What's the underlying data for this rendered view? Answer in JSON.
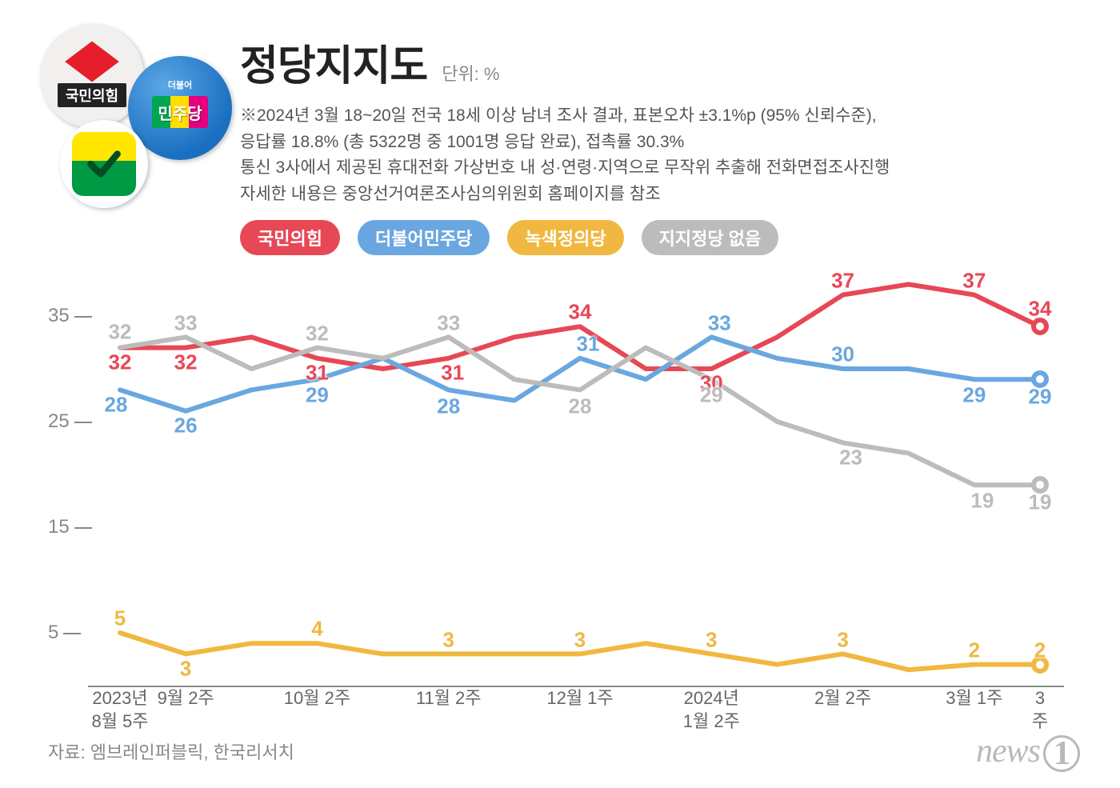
{
  "title": "정당지지도",
  "unit_label": "단위: %",
  "description_lines": [
    "※2024년 3월 18~20일 전국 18세 이상 남녀 조사 결과, 표본오차 ±3.1%p (95% 신뢰수준),",
    "응답률 18.8% (총 5322명 중 1001명 응답 완료), 접촉률 30.3%",
    "통신 3사에서 제공된 휴대전화 가상번호 내 성·연령·지역으로 무작위 추출해 전화면접조사진행",
    "자세한 내용은 중앙선거여론조사심의위원회 홈페이지를 참조"
  ],
  "legend": [
    {
      "label": "국민의힘",
      "color": "#e74856"
    },
    {
      "label": "더불어민주당",
      "color": "#6aa7e0"
    },
    {
      "label": "녹색정의당",
      "color": "#f0b840"
    },
    {
      "label": "지지정당 없음",
      "color": "#bcbcbc"
    }
  ],
  "logo_names": {
    "ppp": "국민의힘",
    "dpk": "민주당",
    "dpk_small": "더불어"
  },
  "chart": {
    "type": "line",
    "ylim": [
      0,
      40
    ],
    "yticks": [
      5,
      15,
      25,
      35
    ],
    "line_width": 6,
    "marker_last_radius": 11,
    "background_color": "#ffffff",
    "axis_color": "#888888",
    "label_fontsize": 26,
    "xlabels": [
      "2023년\n8월 5주",
      "9월 2주",
      "",
      "10월 2주",
      "",
      "11월 2주",
      "",
      "12월 1주",
      "",
      "2024년\n1월 2주",
      "",
      "2월 2주",
      "",
      "3월 1주",
      "3주"
    ],
    "series": [
      {
        "name": "국민의힘",
        "color": "#e74856",
        "values": [
          32,
          32,
          33,
          31,
          30,
          31,
          33,
          34,
          30,
          30,
          33,
          37,
          38,
          37,
          34
        ],
        "labels_show": {
          "0": 32,
          "1": 32,
          "3": 31,
          "5": 31,
          "7": 34,
          "9": 30,
          "11": 37,
          "13": 37,
          "14": 34
        },
        "label_offsets": {
          "0": [
            0,
            18
          ],
          "1": [
            0,
            18
          ],
          "3": [
            0,
            18
          ],
          "5": [
            5,
            18
          ],
          "7": [
            0,
            -18
          ],
          "9": [
            0,
            18
          ],
          "11": [
            0,
            -18
          ],
          "13": [
            0,
            -18
          ],
          "14": [
            0,
            -22
          ]
        }
      },
      {
        "name": "더불어민주당",
        "color": "#6aa7e0",
        "values": [
          28,
          26,
          28,
          29,
          31,
          28,
          27,
          31,
          29,
          33,
          31,
          30,
          30,
          29,
          29
        ],
        "labels_show": {
          "0": 28,
          "1": 26,
          "3": 29,
          "5": 28,
          "7": 31,
          "9": 33,
          "11": 30,
          "13": 29,
          "14": 29
        },
        "label_offsets": {
          "0": [
            -5,
            18
          ],
          "1": [
            0,
            18
          ],
          "3": [
            0,
            20
          ],
          "5": [
            0,
            20
          ],
          "7": [
            10,
            -18
          ],
          "9": [
            10,
            -18
          ],
          "11": [
            0,
            -18
          ],
          "13": [
            0,
            20
          ],
          "14": [
            0,
            22
          ]
        }
      },
      {
        "name": "녹색정의당",
        "color": "#f0b840",
        "values": [
          5,
          3,
          4,
          4,
          3,
          3,
          3,
          3,
          4,
          3,
          2,
          3,
          1.5,
          2,
          2
        ],
        "labels_show": {
          "0": 5,
          "1": 3,
          "3": 4,
          "5": 3,
          "7": 3,
          "9": 3,
          "11": 3,
          "13": 2,
          "14": 2
        },
        "label_offsets": {
          "0": [
            0,
            -18
          ],
          "1": [
            0,
            18
          ],
          "3": [
            0,
            -18
          ],
          "5": [
            0,
            -18
          ],
          "7": [
            0,
            -18
          ],
          "9": [
            0,
            -18
          ],
          "11": [
            0,
            -18
          ],
          "13": [
            0,
            -18
          ],
          "14": [
            0,
            -18
          ]
        }
      },
      {
        "name": "지지정당 없음",
        "color": "#bcbcbc",
        "values": [
          32,
          33,
          30,
          32,
          31,
          33,
          29,
          28,
          32,
          29,
          25,
          23,
          22,
          19,
          19
        ],
        "labels_show": {
          "0": 32,
          "1": 33,
          "3": 32,
          "5": 33,
          "7": 28,
          "9": 29,
          "11": 23,
          "13": 19,
          "14": 19
        },
        "label_offsets": {
          "0": [
            0,
            -20
          ],
          "1": [
            0,
            -18
          ],
          "3": [
            0,
            -18
          ],
          "5": [
            0,
            -18
          ],
          "7": [
            0,
            20
          ],
          "9": [
            0,
            20
          ],
          "11": [
            10,
            18
          ],
          "13": [
            10,
            20
          ],
          "14": [
            0,
            22
          ]
        }
      }
    ]
  },
  "source_label": "자료: 엠브레인퍼블릭, 한국리서치",
  "brand": "news",
  "brand_one": "1"
}
